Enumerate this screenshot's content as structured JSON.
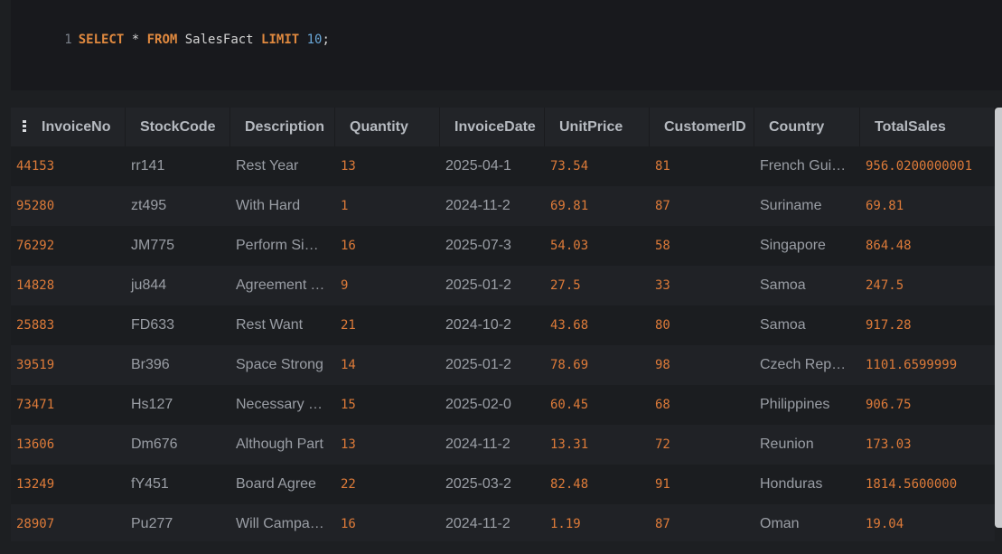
{
  "editor": {
    "line_number": "1",
    "tokens": {
      "select": "SELECT",
      "star": " * ",
      "from": "FROM",
      "table": " SalesFact ",
      "limit": "LIMIT",
      "space": " ",
      "count": "10",
      "semicolon": ";"
    }
  },
  "grid": {
    "columns": [
      "InvoiceNo",
      "StockCode",
      "Description",
      "Quantity",
      "InvoiceDate",
      "UnitPrice",
      "CustomerID",
      "Country",
      "TotalSales"
    ],
    "rows": [
      [
        "44153",
        "rr141",
        "Rest Year",
        "13",
        "2025-04-1",
        "73.54",
        "81",
        "French Guiana",
        "956.0200000001"
      ],
      [
        "95280",
        "zt495",
        "With Hard",
        "1",
        "2024-11-2",
        "69.81",
        "87",
        "Suriname",
        "69.81"
      ],
      [
        "76292",
        "JM775",
        "Perform Single",
        "16",
        "2025-07-3",
        "54.03",
        "58",
        "Singapore",
        "864.48"
      ],
      [
        "14828",
        "ju844",
        "Agreement Team",
        "9",
        "2025-01-2",
        "27.5",
        "33",
        "Samoa",
        "247.5"
      ],
      [
        "25883",
        "FD633",
        "Rest Want",
        "21",
        "2024-10-2",
        "43.68",
        "80",
        "Samoa",
        "917.28"
      ],
      [
        "39519",
        "Br396",
        "Space Strong",
        "14",
        "2025-01-2",
        "78.69",
        "98",
        "Czech Republic",
        "1101.6599999"
      ],
      [
        "73471",
        "Hs127",
        "Necessary Plan",
        "15",
        "2025-02-0",
        "60.45",
        "68",
        "Philippines",
        "906.75"
      ],
      [
        "13606",
        "Dm676",
        "Although Part",
        "13",
        "2024-11-2",
        "13.31",
        "72",
        "Reunion",
        "173.03"
      ],
      [
        "13249",
        "fY451",
        "Board Agree",
        "22",
        "2025-03-2",
        "82.48",
        "91",
        "Honduras",
        "1814.5600000"
      ],
      [
        "28907",
        "Pu277",
        "Will Campaign",
        "16",
        "2024-11-2",
        "1.19",
        "87",
        "Oman",
        "19.04"
      ]
    ]
  },
  "colors": {
    "keyword": "#e0893f",
    "number_literal": "#69a7d8",
    "numeric_cell": "#de7b39",
    "text_cell": "#9a9ea5",
    "header_text": "#b6bac0"
  },
  "icons": {
    "column_menu": "vertical-ellipsis-icon"
  }
}
